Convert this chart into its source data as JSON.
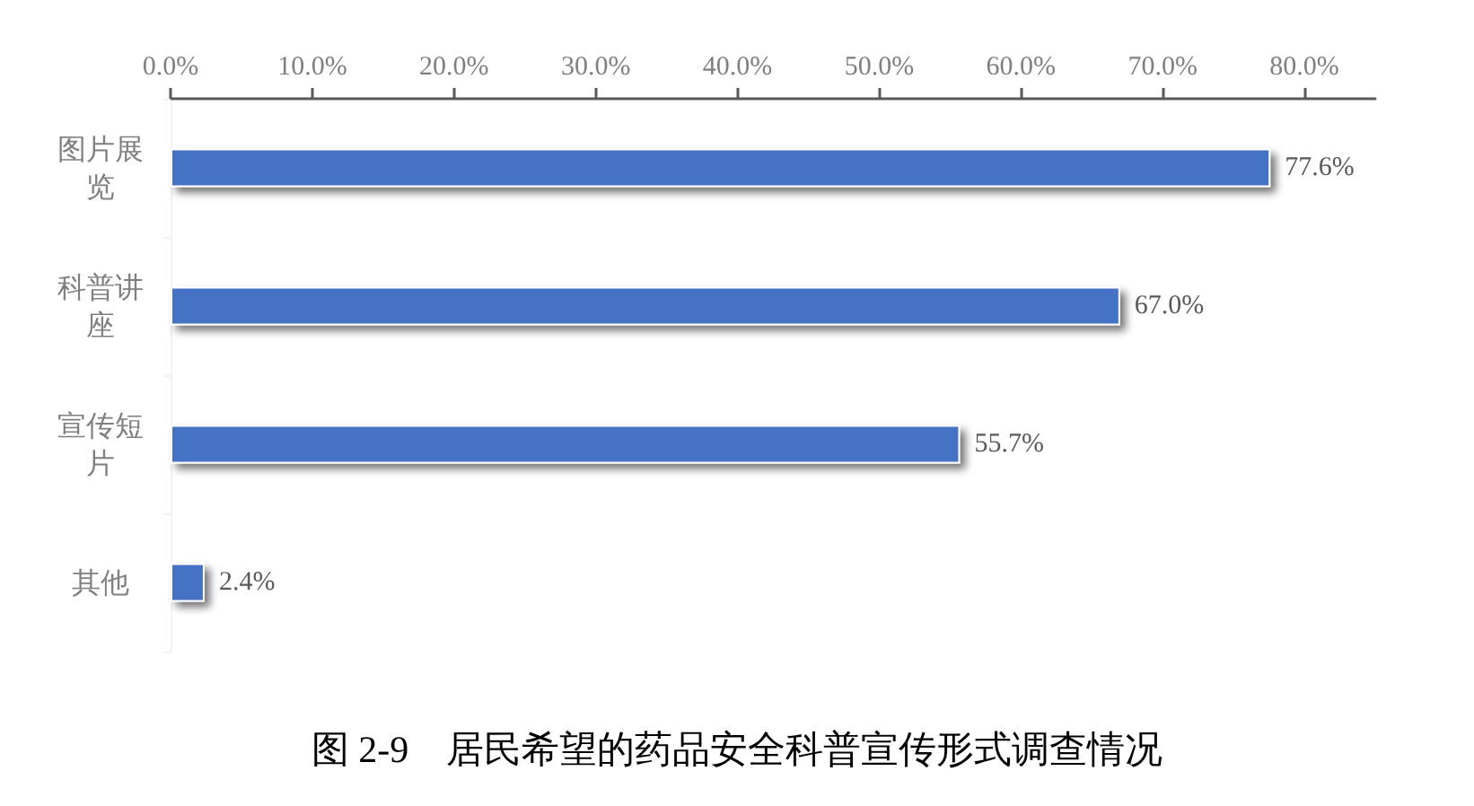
{
  "chart_data": {
    "type": "bar",
    "orientation": "horizontal",
    "title": "图 2-9　居民希望的药品安全科普宣传形式调查情况",
    "categories": [
      "图片展览",
      "科普讲座",
      "宣传短片",
      "其他"
    ],
    "values": [
      77.6,
      67.0,
      55.7,
      2.4
    ],
    "value_labels": [
      "77.6%",
      "67.0%",
      "55.7%",
      "2.4%"
    ],
    "color": "#4472c4",
    "xlim": [
      0,
      85
    ],
    "xticks": [
      {
        "value": 0,
        "label": "0.0%"
      },
      {
        "value": 10,
        "label": "10.0%"
      },
      {
        "value": 20,
        "label": "20.0%"
      },
      {
        "value": 30,
        "label": "30.0%"
      },
      {
        "value": 40,
        "label": "40.0%"
      },
      {
        "value": 50,
        "label": "50.0%"
      },
      {
        "value": 60,
        "label": "60.0%"
      },
      {
        "value": 70,
        "label": "70.0%"
      },
      {
        "value": 80,
        "label": "80.0%"
      }
    ]
  }
}
